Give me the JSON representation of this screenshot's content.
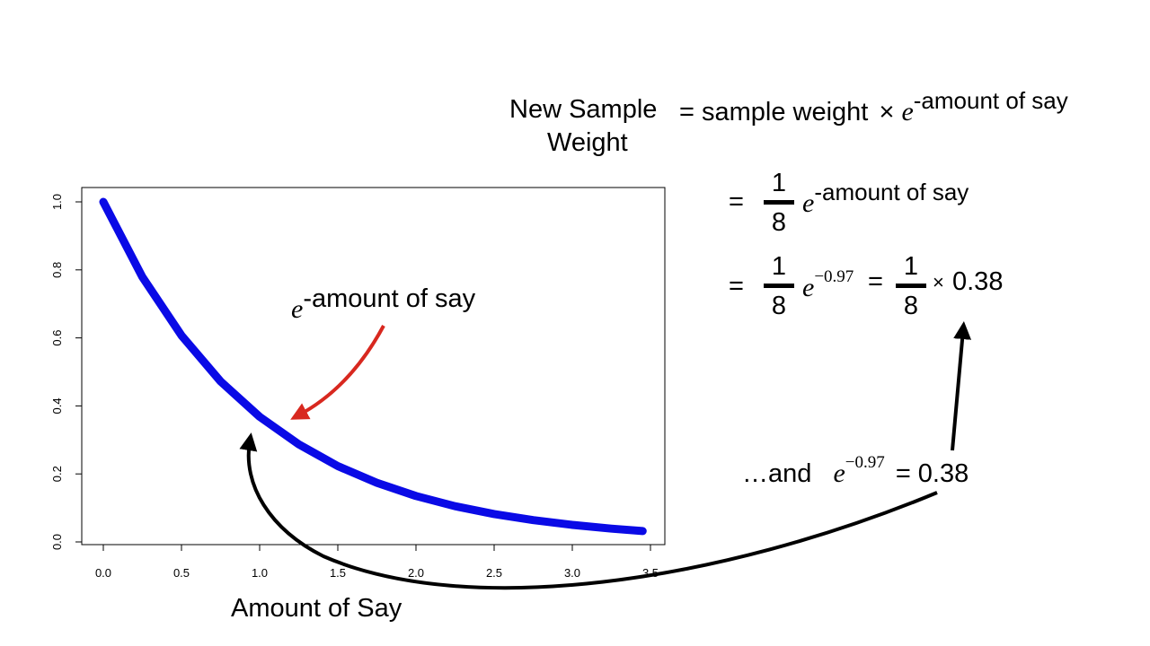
{
  "chart_data": {
    "type": "line",
    "xlabel": "Amount of Say",
    "ylabel": "",
    "xlim": [
      0,
      3.5
    ],
    "ylim": [
      0,
      1.0
    ],
    "x_ticks": [
      "0.0",
      "0.5",
      "1.0",
      "1.5",
      "2.0",
      "2.5",
      "3.0",
      "3.5"
    ],
    "y_ticks": [
      "0.0",
      "0.2",
      "0.4",
      "0.6",
      "0.8",
      "1.0"
    ],
    "grid": false,
    "series": [
      {
        "x": [
          0,
          0.25,
          0.5,
          0.75,
          1.0,
          1.25,
          1.5,
          1.75,
          2.0,
          2.25,
          2.5,
          2.75,
          3.0,
          3.25,
          3.45
        ],
        "y": [
          1.0,
          0.779,
          0.607,
          0.472,
          0.368,
          0.287,
          0.223,
          0.174,
          0.135,
          0.105,
          0.082,
          0.064,
          0.05,
          0.039,
          0.032
        ],
        "color": "#0a0ae6"
      }
    ],
    "annotation": {
      "base": "e",
      "exponent": "-amount of say",
      "arrow_color": "#d8281f"
    }
  },
  "formula": {
    "lhs_line1": "New Sample",
    "lhs_line2": "Weight",
    "rhs": "= sample weight",
    "times": "×",
    "e": "e",
    "exp": "-amount of say",
    "step2_eq": "=",
    "step2_num": "1",
    "step2_den": "8",
    "step2_e": "e",
    "step2_exp": "-amount of say",
    "step3_eq": "=",
    "step3_num": "1",
    "step3_den": "8",
    "step3_e": "e",
    "step3_exp": "−0.97",
    "step3_eq2": "=",
    "step3_num2": "1",
    "step3_den2": "8",
    "step3_times": "×",
    "step3_value": "0.38"
  },
  "note": {
    "prefix": "…and",
    "e": "e",
    "exp": "−0.97",
    "suffix": "= 0.38"
  },
  "colors": {
    "curve": "#0a0ae6",
    "red_arrow": "#d8281f",
    "black_arrow": "#000000"
  }
}
